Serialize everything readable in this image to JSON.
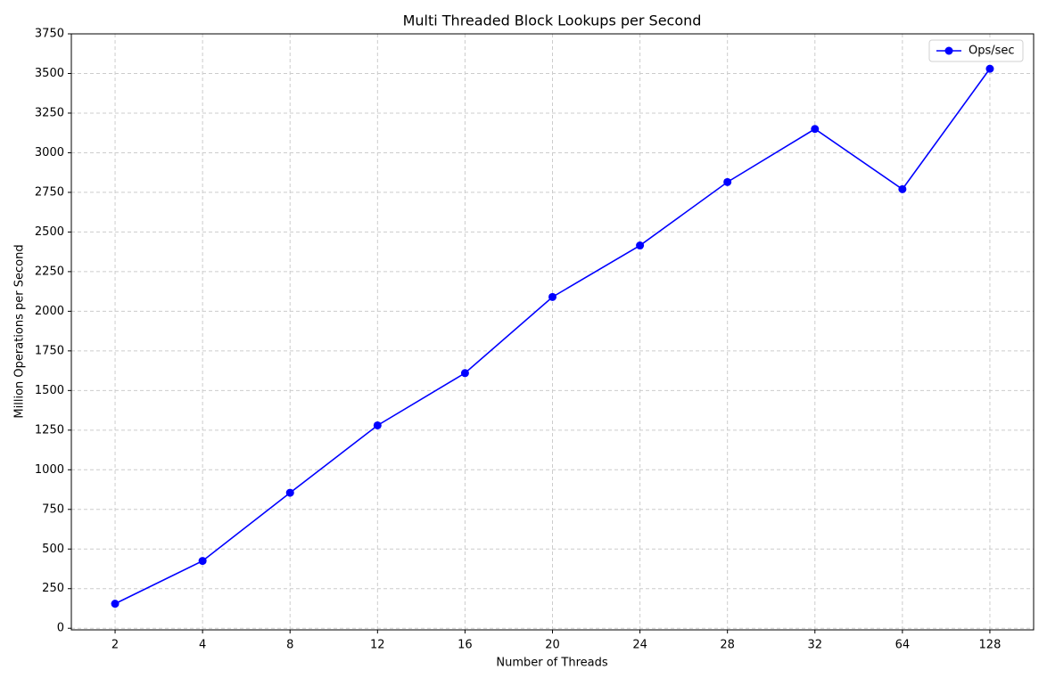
{
  "chart_data": {
    "type": "line",
    "title": "Multi Threaded Block Lookups per Second",
    "x_label": "Number of Threads",
    "y_label": "Million Operations per Second",
    "categories": [
      "2",
      "4",
      "8",
      "12",
      "16",
      "20",
      "24",
      "28",
      "32",
      "64",
      "128"
    ],
    "series": [
      {
        "name": "Ops/sec",
        "color": "#0000ff",
        "values": [
          155,
          425,
          855,
          1280,
          1610,
          2090,
          2415,
          2815,
          3150,
          2770,
          3530
        ]
      }
    ],
    "ylim": [
      -10,
      3750
    ],
    "yticks": [
      0,
      250,
      500,
      750,
      1000,
      1250,
      1500,
      1750,
      2000,
      2250,
      2500,
      2750,
      3000,
      3250,
      3500,
      3750
    ],
    "grid": true,
    "legend": "upper right"
  }
}
